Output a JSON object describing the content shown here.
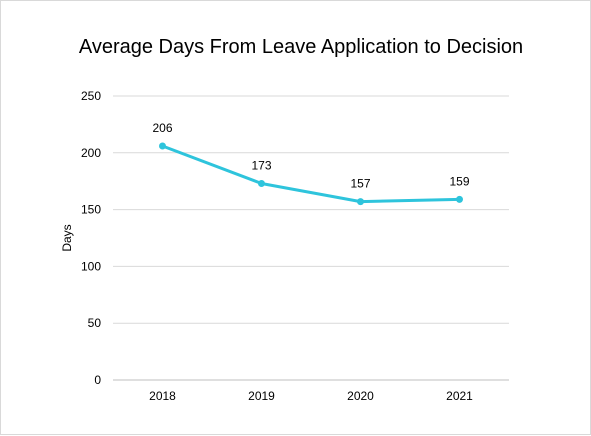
{
  "chart_data": {
    "type": "line",
    "title": "Average Days From Leave Application to Decision",
    "xlabel": "",
    "ylabel": "Days",
    "categories": [
      "2018",
      "2019",
      "2020",
      "2021"
    ],
    "series": [
      {
        "values": [
          206,
          173,
          157,
          159
        ]
      }
    ],
    "data_labels": [
      "206",
      "173",
      "157",
      "159"
    ],
    "yticks": [
      "0",
      "50",
      "100",
      "150",
      "200",
      "250"
    ],
    "ylim": [
      0,
      250
    ],
    "grid": true,
    "legend": "none",
    "colors": {
      "line": "#2ec4dc",
      "grid": "#d9d9d9",
      "axis": "#bfbfbf"
    }
  }
}
